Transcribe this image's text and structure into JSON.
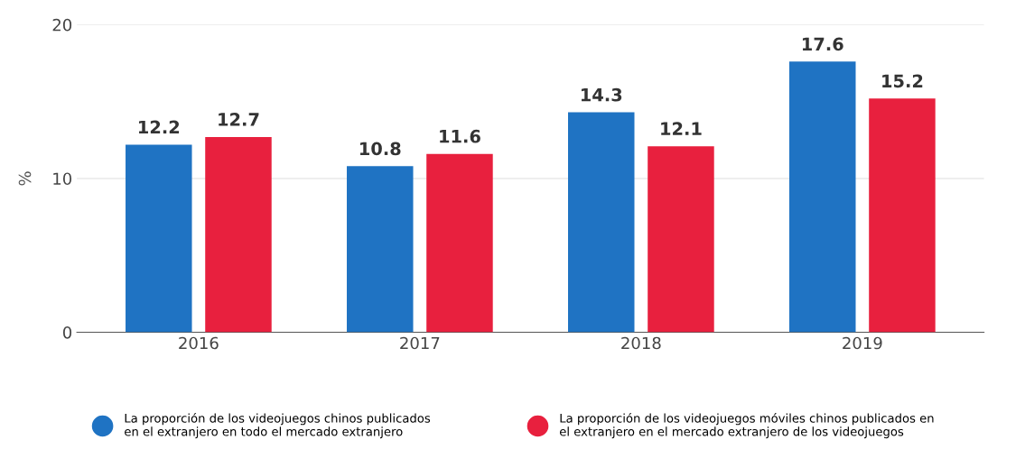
{
  "chart_data": {
    "type": "bar",
    "ylabel": "%",
    "categories": [
      "2016",
      "2017",
      "2018",
      "2019"
    ],
    "series": [
      {
        "name": "La proporción de los videojuegos chinos publicados\nen el extranjero en todo el mercado extranjero",
        "color": "#1f73c3",
        "values": [
          12.2,
          10.8,
          14.3,
          17.6
        ]
      },
      {
        "name": "La proporción de los videojuegos móviles chinos publicados en\nel extranjero en el mercado extranjero de los videojuegos",
        "color": "#e8203e",
        "values": [
          12.7,
          11.6,
          12.1,
          15.2
        ]
      }
    ],
    "ylim": [
      0,
      20
    ],
    "yticks": [
      0,
      10,
      20
    ],
    "grid": "y",
    "legend": "bottom",
    "marker": "circle",
    "data_labels": true
  }
}
